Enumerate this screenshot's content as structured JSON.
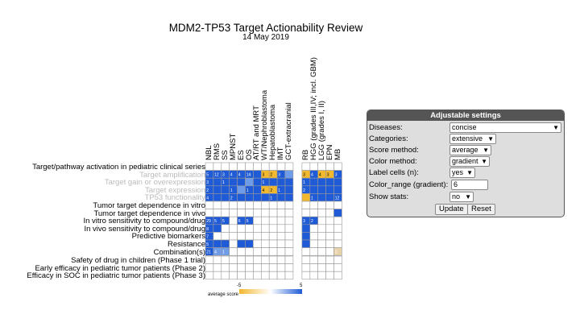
{
  "title": "MDM2-TP53 Target Actionability Review",
  "subtitle": "14 May 2019",
  "columns_left": [
    "NBL",
    "RMS",
    "SS",
    "MPNST",
    "ES",
    "OS",
    "AT/RT and MRT",
    "WT/Nephroblastoma",
    "Hepatoblastoma",
    "IMT",
    "GCT-extracranial"
  ],
  "columns_right": [
    "RB",
    "HGG (grades III,IV; incl. GBM)",
    "LGG (grades I, II)",
    "EPN",
    "MB"
  ],
  "rows_top": [
    {
      "label": "Target/pathway activation in pediatric clinical series",
      "grey": false
    },
    {
      "label": "Target amplification",
      "grey": true
    },
    {
      "label": "Target gain or overexpression",
      "grey": true
    },
    {
      "label": "Target expression",
      "grey": true
    },
    {
      "label": "TP53 functionality",
      "grey": true
    },
    {
      "label": "Tumor target dependence in vitro",
      "grey": false
    },
    {
      "label": "Tumor target dependence in vivo",
      "grey": false
    },
    {
      "label": "In vitro sensitivity to compound/drug",
      "grey": false
    },
    {
      "label": "In vivo sensitivity to compound/drug",
      "grey": false
    },
    {
      "label": "Predictive biomarkers",
      "grey": false
    },
    {
      "label": "Resistance",
      "grey": false
    },
    {
      "label": "Combination(s)",
      "grey": false
    }
  ],
  "rows_bottom": [
    {
      "label": "Safety of drug in children (Phase 1 trial)"
    },
    {
      "label": "Early efficacy in pediatric tumor patients (Phase 2)"
    },
    {
      "label": "Efficacy in SOC in pediatric tumor patients (Phase 3)"
    }
  ],
  "colors": {
    "blue": "#1f5bd6",
    "lightblue": "#6f9ce8",
    "orange": "#f2b82e",
    "tan": "#e8d2a8",
    "empty": "#ffffff"
  },
  "grid_top": [
    [
      "",
      "",
      "",
      "",
      "",
      "",
      "",
      "",
      "",
      "",
      "",
      "",
      "",
      "",
      "",
      ""
    ],
    [
      "b",
      "b",
      "b",
      "b",
      "b",
      "b",
      "b",
      "o",
      "o",
      "b",
      "l",
      "o",
      "b",
      "o",
      "o",
      "b"
    ],
    [
      "b",
      "b",
      "b",
      "b",
      "b",
      "l",
      "b",
      "b",
      "b",
      "b",
      "b",
      "b",
      "b",
      "b",
      "b",
      "b"
    ],
    [
      "b",
      "b",
      "b",
      "b",
      "l",
      "b",
      "b",
      "o",
      "o",
      "b",
      "b",
      "b",
      "b",
      "b",
      "b",
      "b"
    ],
    [
      "b",
      "b",
      "b",
      "b",
      "b",
      "b",
      "b",
      "b",
      "b",
      "b",
      "b",
      "o",
      "b",
      "b",
      "b",
      "b"
    ],
    [
      "",
      "",
      "",
      "",
      "",
      "",
      "",
      "",
      "",
      "",
      "",
      "",
      "",
      "",
      "",
      ""
    ],
    [
      "",
      "",
      "",
      "",
      "",
      "",
      "",
      "",
      "",
      "",
      "",
      "",
      "",
      "",
      "",
      "b"
    ],
    [
      "b",
      "b",
      "b",
      "",
      "b",
      "b",
      "",
      "",
      "",
      "",
      "",
      "b",
      "b",
      "",
      "",
      ""
    ],
    [
      "b",
      "b",
      "",
      "",
      "",
      "",
      "",
      "",
      "",
      "",
      "",
      "b",
      "",
      "",
      "",
      ""
    ],
    [
      "b",
      "",
      "",
      "",
      "",
      "",
      "",
      "",
      "",
      "",
      "",
      "b",
      "",
      "",
      "",
      ""
    ],
    [
      "b",
      "b",
      "b",
      "",
      "b",
      "b",
      "",
      "",
      "",
      "",
      "",
      "b",
      "",
      "",
      "",
      ""
    ],
    [
      "b",
      "l",
      "l",
      "",
      "",
      "",
      "",
      "",
      "",
      "",
      "",
      "",
      "",
      "",
      "",
      "t"
    ]
  ],
  "cell_numbers_top": [
    [
      "",
      "",
      "",
      "",
      "",
      "",
      "",
      "",
      "",
      "",
      "",
      "",
      "",
      "",
      "",
      ""
    ],
    [
      "5",
      "12",
      "3",
      "4",
      "4",
      "14",
      "",
      "3",
      "2",
      "3",
      "",
      "3",
      "4",
      "4",
      "3",
      "3"
    ],
    [
      "3",
      "",
      "1",
      "",
      "",
      "",
      "",
      "1",
      "",
      "",
      "",
      "1",
      "",
      "",
      "",
      ""
    ],
    [
      "2",
      "",
      "",
      "1",
      "",
      "1",
      "",
      "4",
      "2",
      "1",
      "",
      "2",
      "",
      "",
      "",
      ""
    ],
    [
      "4",
      "",
      "",
      "2",
      "",
      "",
      "",
      "",
      "1",
      "",
      "",
      "",
      "1",
      "",
      "",
      "12"
    ],
    [
      "",
      "",
      "",
      "",
      "",
      "",
      "",
      "",
      "",
      "",
      "",
      "",
      "",
      "",
      "",
      ""
    ],
    [
      "",
      "",
      "",
      "",
      "",
      "",
      "",
      "",
      "",
      "",
      "",
      "",
      "",
      "",
      "",
      ""
    ],
    [
      "29",
      "5",
      "5",
      "",
      "6",
      "5",
      "",
      "",
      "",
      "",
      "2",
      "3",
      "2",
      "",
      "",
      ""
    ],
    [
      "8",
      "",
      "",
      "",
      "",
      "",
      "",
      "",
      "",
      "",
      "",
      "",
      "",
      "",
      "",
      ""
    ],
    [
      "7",
      "",
      "",
      "",
      "",
      "",
      "",
      "",
      "",
      "",
      "",
      "",
      "",
      "",
      "",
      ""
    ],
    [
      "5",
      "",
      "",
      "",
      "",
      "",
      "",
      "",
      "",
      "",
      "",
      "",
      "",
      "",
      "",
      ""
    ],
    [
      "21",
      "4",
      "1",
      "",
      "5",
      "",
      "",
      "",
      "",
      "",
      "",
      "",
      "",
      "",
      "",
      "2"
    ]
  ],
  "legend": {
    "label": "average score",
    "min": "-5",
    "max": "5"
  },
  "settings": {
    "title": "Adjustable settings",
    "diseases_label": "Diseases:",
    "diseases_value": "concise",
    "categories_label": "Categories:",
    "categories_value": "extensive",
    "score_label": "Score method:",
    "score_value": "average",
    "color_label": "Color method:",
    "color_value": "gradient",
    "labelcells_label": "Label cells (n):",
    "labelcells_value": "yes",
    "colorrange_label": "Color_range (gradient):",
    "colorrange_value": "6",
    "stats_label": "Show stats:",
    "stats_value": "no",
    "update_label": "Update",
    "reset_label": "Reset"
  }
}
